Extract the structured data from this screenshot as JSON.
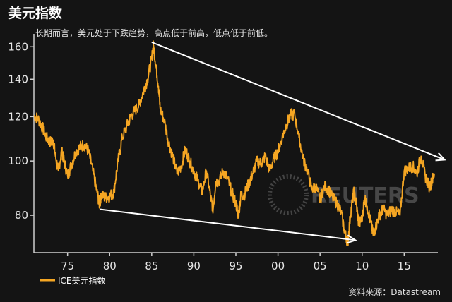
{
  "header": {
    "title": "美元指数",
    "subtitle": "长期而言，美元处于下跌趋势，高点低于前高，低点低于前低。"
  },
  "footer": {
    "source": "资料来源：Datastream"
  },
  "watermark": {
    "text": "REUTERS"
  },
  "chart_data": {
    "type": "line",
    "title": "美元指数",
    "xlabel": "",
    "ylabel": "",
    "x_ticks": [
      "75",
      "80",
      "85",
      "90",
      "95",
      "00",
      "05",
      "10",
      "15"
    ],
    "x_tick_years": [
      1975,
      1980,
      1985,
      1990,
      1995,
      2000,
      2005,
      2010,
      2015
    ],
    "y_ticks": [
      80,
      100,
      120,
      140,
      160
    ],
    "xlim": [
      1971,
      2019
    ],
    "ylim": [
      70,
      162
    ],
    "grid": false,
    "legend_position": "bottom-left",
    "series": [
      {
        "name": "ICE美元指数",
        "color": "#f5a623",
        "x": [
          1971.0,
          1971.5,
          1972.0,
          1972.5,
          1973.0,
          1973.3,
          1973.6,
          1973.9,
          1974.3,
          1974.6,
          1975.0,
          1975.5,
          1976.0,
          1976.5,
          1977.0,
          1977.5,
          1978.0,
          1978.5,
          1978.8,
          1979.0,
          1979.5,
          1980.0,
          1980.5,
          1981.0,
          1981.5,
          1982.0,
          1982.5,
          1983.0,
          1983.5,
          1984.0,
          1984.5,
          1985.0,
          1985.2,
          1985.5,
          1985.8,
          1986.0,
          1986.5,
          1987.0,
          1987.5,
          1988.0,
          1988.5,
          1989.0,
          1989.5,
          1990.0,
          1990.5,
          1991.0,
          1991.5,
          1992.0,
          1992.3,
          1992.6,
          1993.0,
          1993.5,
          1994.0,
          1994.5,
          1995.0,
          1995.3,
          1995.6,
          1996.0,
          1996.5,
          1997.0,
          1997.5,
          1998.0,
          1998.5,
          1999.0,
          1999.5,
          2000.0,
          2000.5,
          2001.0,
          2001.5,
          2002.0,
          2002.5,
          2003.0,
          2003.5,
          2004.0,
          2004.5,
          2005.0,
          2005.5,
          2006.0,
          2006.5,
          2007.0,
          2007.5,
          2008.0,
          2008.3,
          2008.6,
          2009.0,
          2009.3,
          2009.6,
          2010.0,
          2010.3,
          2010.6,
          2011.0,
          2011.3,
          2011.6,
          2012.0,
          2012.5,
          2013.0,
          2013.5,
          2014.0,
          2014.5,
          2015.0,
          2015.5,
          2016.0,
          2016.5,
          2017.0,
          2017.5,
          2018.0,
          2018.3,
          2018.6
        ],
        "y": [
          120.5,
          119.0,
          115.0,
          110.0,
          108.0,
          109.0,
          101.0,
          96.0,
          104.0,
          100.0,
          94.0,
          99.0,
          104.0,
          106.0,
          107.0,
          104.0,
          96.0,
          88.0,
          83.5,
          87.0,
          86.0,
          86.5,
          88.0,
          100.0,
          110.0,
          115.0,
          120.0,
          123.0,
          126.0,
          133.0,
          140.0,
          152.0,
          161.0,
          148.0,
          136.0,
          124.0,
          118.0,
          108.0,
          102.0,
          95.0,
          98.0,
          105.0,
          100.0,
          96.0,
          92.0,
          88.0,
          96.0,
          86.0,
          82.0,
          92.0,
          92.0,
          96.0,
          93.0,
          88.0,
          84.0,
          80.0,
          87.0,
          87.0,
          91.0,
          95.0,
          100.0,
          99.0,
          102.0,
          96.0,
          101.0,
          104.0,
          110.0,
          116.0,
          121.0,
          121.0,
          110.0,
          101.0,
          96.0,
          89.0,
          90.0,
          85.0,
          90.0,
          89.0,
          86.0,
          84.0,
          81.0,
          74.0,
          71.5,
          80.0,
          88.0,
          84.0,
          77.0,
          79.0,
          86.0,
          83.0,
          78.0,
          74.0,
          76.0,
          80.0,
          82.0,
          80.0,
          82.0,
          81.0,
          80.0,
          96.0,
          97.0,
          98.0,
          95.0,
          102.0,
          94.0,
          90.0,
          92.0,
          95.0
        ]
      }
    ],
    "annotations": [
      {
        "type": "arrow",
        "label": "",
        "from": [
          1985.0,
          163.0
        ],
        "to": [
          2019.8,
          100.5
        ]
      },
      {
        "type": "arrow",
        "label": "",
        "from": [
          1978.8,
          82.0
        ],
        "to": [
          2009.2,
          72.2
        ]
      }
    ]
  }
}
